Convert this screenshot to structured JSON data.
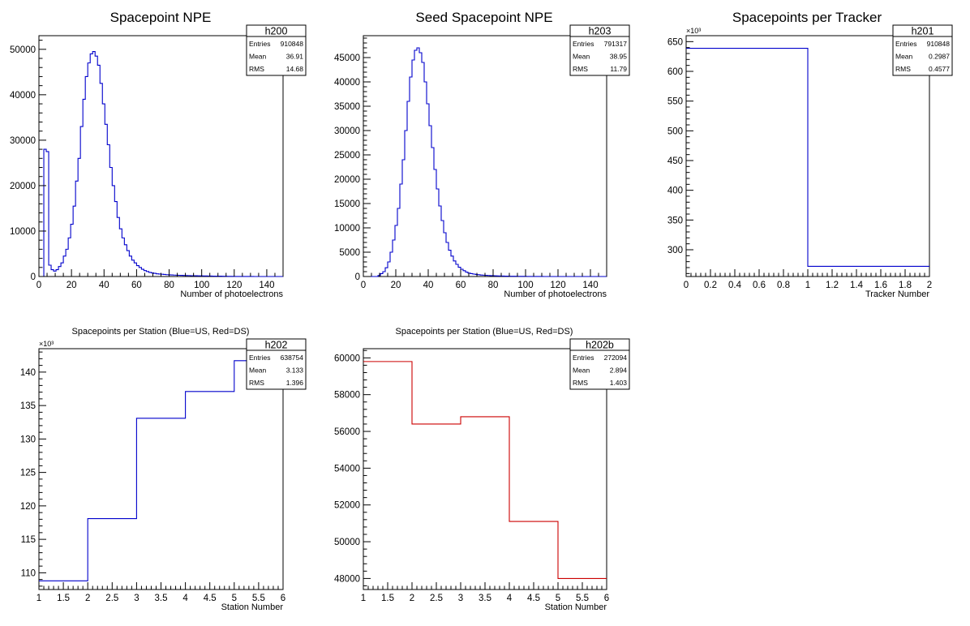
{
  "chart_data": [
    {
      "id": "h200",
      "type": "histogram",
      "title": "Spacepoint NPE",
      "xlabel": "Number of photoelectrons",
      "ylabel": "",
      "xlim": [
        0,
        150
      ],
      "ylim": [
        0,
        53000
      ],
      "xticks": [
        0,
        20,
        40,
        60,
        80,
        100,
        120,
        140
      ],
      "yticks": [
        0,
        10000,
        20000,
        30000,
        40000,
        50000
      ],
      "ytick_labels": [
        "0",
        "10000",
        "20000",
        "30000",
        "40000",
        "50000"
      ],
      "y_exponent": "",
      "line_color": "#0000cc",
      "bin_width": 1.5,
      "values": [
        0,
        0,
        28000,
        27500,
        2500,
        1500,
        1200,
        1500,
        2200,
        3000,
        4500,
        6000,
        8500,
        11500,
        15500,
        21000,
        26000,
        33000,
        39000,
        44000,
        47000,
        49000,
        49500,
        48500,
        46500,
        42500,
        38000,
        33500,
        29000,
        24000,
        20000,
        16500,
        13000,
        10500,
        8500,
        7000,
        5700,
        4500,
        3600,
        3000,
        2400,
        2000,
        1600,
        1300,
        1100,
        900,
        800,
        700,
        600,
        550,
        500,
        450,
        400,
        370,
        340,
        310,
        290,
        270,
        250,
        230,
        210,
        200,
        180,
        170,
        160,
        150,
        140,
        130,
        120,
        110,
        100,
        90,
        80,
        75,
        70,
        60,
        50,
        40,
        30,
        25,
        20,
        15,
        10,
        8,
        6,
        5,
        4,
        3,
        2,
        1,
        1,
        0,
        0,
        0,
        0,
        0,
        0,
        0,
        0,
        0
      ],
      "stats": {
        "name": "h200",
        "entries_label": "Entries",
        "entries": "910848",
        "mean_label": "Mean",
        "mean": "36.91",
        "rms_label": "RMS",
        "rms": "14.68"
      }
    },
    {
      "id": "h203",
      "type": "histogram",
      "title": "Seed Spacepoint NPE",
      "xlabel": "Number of photoelectrons",
      "ylabel": "",
      "xlim": [
        0,
        150
      ],
      "ylim": [
        0,
        49500
      ],
      "xticks": [
        0,
        20,
        40,
        60,
        80,
        100,
        120,
        140
      ],
      "yticks": [
        0,
        5000,
        10000,
        15000,
        20000,
        25000,
        30000,
        35000,
        40000,
        45000
      ],
      "ytick_labels": [
        "0",
        "5000",
        "10000",
        "15000",
        "20000",
        "25000",
        "30000",
        "35000",
        "40000",
        "45000"
      ],
      "y_exponent": "",
      "line_color": "#0000cc",
      "bin_width": 1.5,
      "values": [
        0,
        0,
        0,
        0,
        0,
        0,
        200,
        600,
        1000,
        1800,
        3000,
        5000,
        7500,
        10500,
        14000,
        19000,
        24000,
        30000,
        36000,
        41000,
        44500,
        46500,
        47000,
        46000,
        44000,
        40000,
        35500,
        31000,
        26500,
        22000,
        18000,
        14500,
        11500,
        9000,
        7000,
        5400,
        4200,
        3200,
        2500,
        1900,
        1500,
        1200,
        900,
        700,
        600,
        500,
        420,
        360,
        310,
        270,
        240,
        210,
        180,
        160,
        140,
        120,
        100,
        90,
        80,
        70,
        60,
        50,
        45,
        40,
        35,
        30,
        25,
        20,
        15,
        10,
        8,
        6,
        4,
        3,
        2,
        1,
        1,
        0,
        0,
        0,
        0,
        0,
        0,
        0,
        0,
        0,
        0,
        0,
        0,
        0,
        0,
        0,
        0,
        0,
        0,
        0,
        0,
        0,
        0,
        0
      ],
      "stats": {
        "name": "h203",
        "entries_label": "Entries",
        "entries": "791317",
        "mean_label": "Mean",
        "mean": "38.95",
        "rms_label": "RMS",
        "rms": "11.79"
      }
    },
    {
      "id": "h201",
      "type": "histogram",
      "title": "Spacepoints per Tracker",
      "xlabel": "Tracker Number",
      "ylabel": "",
      "xlim": [
        0,
        2
      ],
      "ylim": [
        255000,
        660000
      ],
      "xticks": [
        0,
        0.2,
        0.4,
        0.6,
        0.8,
        1,
        1.2,
        1.4,
        1.6,
        1.8,
        2
      ],
      "xtick_labels": [
        "0",
        "0.2",
        "0.4",
        "0.6",
        "0.8",
        "1",
        "1.2",
        "1.4",
        "1.6",
        "1.8",
        "2"
      ],
      "yticks": [
        300000,
        350000,
        400000,
        450000,
        500000,
        550000,
        600000,
        650000
      ],
      "ytick_labels": [
        "300",
        "350",
        "400",
        "450",
        "500",
        "550",
        "600",
        "650"
      ],
      "y_exponent": "×10³",
      "line_color": "#0000cc",
      "bin_edges": [
        0,
        1,
        2
      ],
      "values": [
        638754,
        272094
      ],
      "stats": {
        "name": "h201",
        "entries_label": "Entries",
        "entries": "910848",
        "mean_label": "Mean",
        "mean": "0.2987",
        "rms_label": "RMS",
        "rms": "0.4577"
      }
    },
    {
      "id": "h202",
      "type": "histogram",
      "title": "Spacepoints per Station (Blue=US, Red=DS)",
      "xlabel": "Station Number",
      "ylabel": "",
      "xlim": [
        1,
        6
      ],
      "ylim": [
        107500,
        143500
      ],
      "xticks": [
        1,
        1.5,
        2,
        2.5,
        3,
        3.5,
        4,
        4.5,
        5,
        5.5,
        6
      ],
      "xtick_labels": [
        "1",
        "1.5",
        "2",
        "2.5",
        "3",
        "3.5",
        "4",
        "4.5",
        "5",
        "5.5",
        "6"
      ],
      "yticks": [
        110000,
        115000,
        120000,
        125000,
        130000,
        135000,
        140000
      ],
      "ytick_labels": [
        "110",
        "115",
        "120",
        "125",
        "130",
        "135",
        "140"
      ],
      "y_exponent": "×10³",
      "line_color": "#0000cc",
      "bin_edges": [
        1,
        2,
        3,
        4,
        5,
        6
      ],
      "values": [
        108800,
        118100,
        133100,
        137100,
        141700
      ],
      "stats": {
        "name": "h202",
        "entries_label": "Entries",
        "entries": "638754",
        "mean_label": "Mean",
        "mean": "3.133",
        "rms_label": "RMS",
        "rms": "1.396"
      }
    },
    {
      "id": "h202b",
      "type": "histogram",
      "title": "Spacepoints per Station (Blue=US, Red=DS)",
      "xlabel": "Station Number",
      "ylabel": "",
      "xlim": [
        1,
        6
      ],
      "ylim": [
        47400,
        60500
      ],
      "xticks": [
        1,
        1.5,
        2,
        2.5,
        3,
        3.5,
        4,
        4.5,
        5,
        5.5,
        6
      ],
      "xtick_labels": [
        "1",
        "1.5",
        "2",
        "2.5",
        "3",
        "3.5",
        "4",
        "4.5",
        "5",
        "5.5",
        "6"
      ],
      "yticks": [
        48000,
        50000,
        52000,
        54000,
        56000,
        58000,
        60000
      ],
      "ytick_labels": [
        "48000",
        "50000",
        "52000",
        "54000",
        "56000",
        "58000",
        "60000"
      ],
      "y_exponent": "",
      "line_color": "#cc0000",
      "bin_edges": [
        1,
        2,
        3,
        4,
        5,
        6
      ],
      "values": [
        59800,
        56400,
        56800,
        51100,
        48000
      ],
      "stats": {
        "name": "h202b",
        "entries_label": "Entries",
        "entries": "272094",
        "mean_label": "Mean",
        "mean": "2.894",
        "rms_label": "RMS",
        "rms": "1.403"
      }
    }
  ]
}
